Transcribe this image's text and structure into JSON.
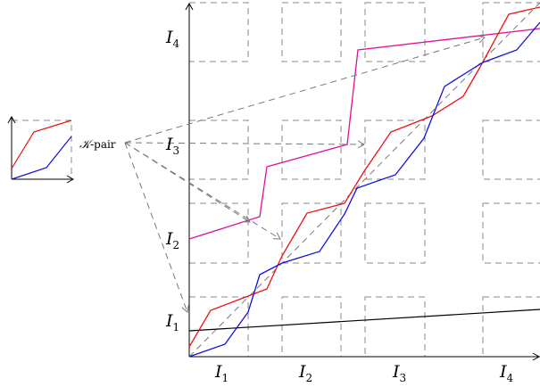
{
  "interval_labels": {
    "x": [
      {
        "base": "I",
        "sub": "1"
      },
      {
        "base": "I",
        "sub": "2"
      },
      {
        "base": "I",
        "sub": "3"
      },
      {
        "base": "I",
        "sub": "4"
      }
    ],
    "y": [
      {
        "base": "I",
        "sub": "1"
      },
      {
        "base": "I",
        "sub": "2"
      },
      {
        "base": "I",
        "sub": "3"
      },
      {
        "base": "I",
        "sub": "4"
      }
    ]
  },
  "pair_label": {
    "symbol": "𝒦",
    "text": "-pair"
  },
  "colors": {
    "red": "#ee1111",
    "blue": "#1111dd",
    "magenta": "#dd1199",
    "black": "#000000",
    "dashed": "#888888"
  }
}
